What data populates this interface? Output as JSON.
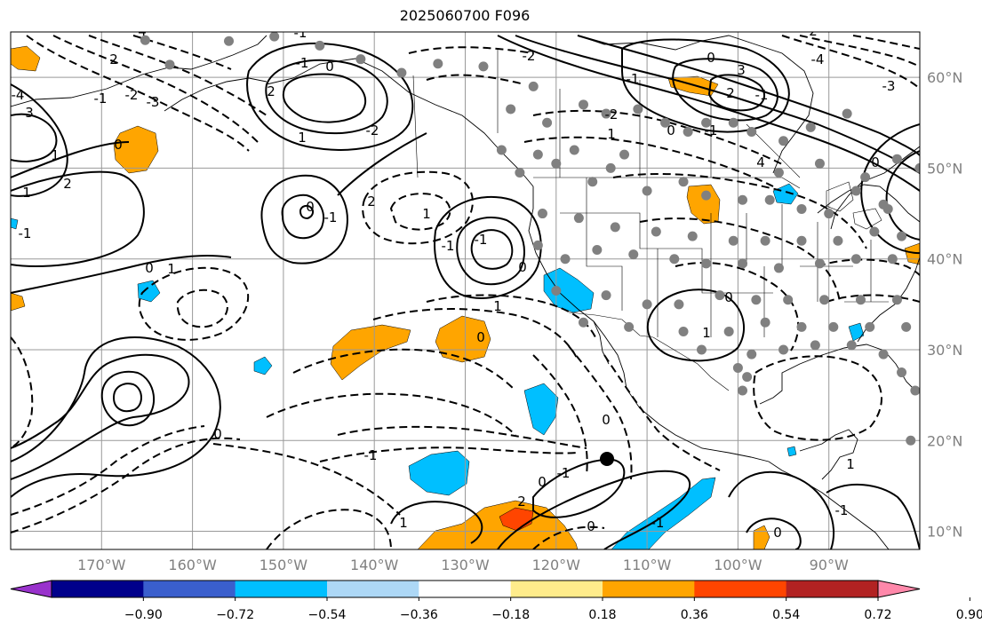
{
  "title": "2025060700 F096",
  "longitude_ticks": [
    "170°W",
    "160°W",
    "150°W",
    "140°W",
    "130°W",
    "120°W",
    "110°W",
    "100°W",
    "90°W"
  ],
  "latitude_ticks": [
    "60°N",
    "50°N",
    "40°N",
    "30°N",
    "20°N",
    "10°N"
  ],
  "map_extent": {
    "lon_min": -180,
    "lon_max": -80,
    "lat_min": 8,
    "lat_max": 65
  },
  "colorbar": {
    "tick_labels": [
      "−0.90",
      "−0.72",
      "−0.54",
      "−0.36",
      "−0.18",
      "0.18",
      "0.36",
      "0.54",
      "0.72",
      "0.90"
    ],
    "colors": [
      "#9932CC",
      "#00008B",
      "#3A5FCD",
      "#00BFFF",
      "#ADD8F6",
      "#FFFFFF",
      "#FFEC8B",
      "#FFA500",
      "#FF4500",
      "#B22222",
      "#FF88AA"
    ],
    "extend": "both"
  },
  "contour_labels": [
    "2",
    "4",
    "3",
    "1",
    "-4",
    "-3",
    "-2",
    "-1",
    "0",
    "1",
    "2",
    "-1",
    "0",
    "1",
    "-1",
    "0",
    "-1",
    "2",
    "1",
    "-2",
    "-1",
    "0",
    "2",
    "1",
    "-1",
    "0",
    "1",
    "-1",
    "0",
    "-1",
    "0",
    "-1",
    "3",
    "2",
    "4",
    "1",
    "0",
    "-1",
    "-2",
    "-3",
    "-4",
    "0",
    "2",
    "-2",
    "-1",
    "0",
    "0",
    "-1",
    "2",
    "1",
    "0",
    "-1",
    "0",
    "1",
    "0",
    "-1",
    "1",
    "0"
  ],
  "grid": true,
  "marker_color": "#000000",
  "station_color": "#808080"
}
